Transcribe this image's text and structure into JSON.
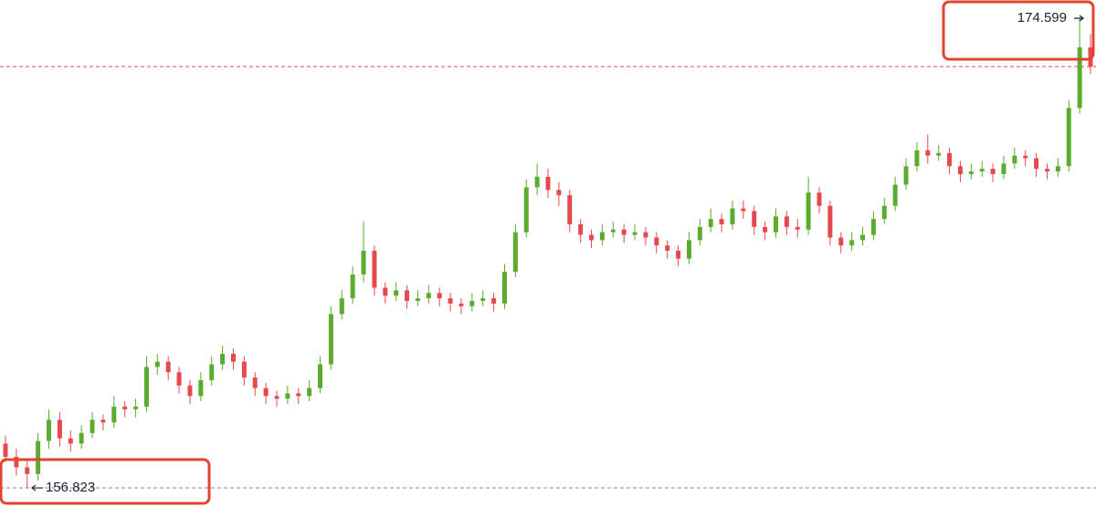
{
  "chart_data": {
    "type": "candlestick",
    "ylim": [
      156.1,
      175.29
    ],
    "up_color": "#5aab2e",
    "down_color": "#e5484d",
    "last_price": 172.77,
    "last_price_color": "#e5484d",
    "high_marker": 174.599,
    "low_marker": 156.823,
    "ohlc": [
      [
        158.5,
        158.8,
        157.8,
        158.0
      ],
      [
        158.0,
        158.3,
        157.3,
        157.6
      ],
      [
        157.6,
        157.9,
        156.823,
        157.35
      ],
      [
        157.35,
        158.9,
        157.1,
        158.6
      ],
      [
        158.6,
        159.8,
        158.3,
        159.4
      ],
      [
        159.4,
        159.7,
        158.4,
        158.7
      ],
      [
        158.7,
        159.0,
        158.2,
        158.5
      ],
      [
        158.5,
        159.2,
        158.3,
        158.9
      ],
      [
        158.9,
        159.7,
        158.7,
        159.4
      ],
      [
        159.4,
        159.6,
        159.0,
        159.3
      ],
      [
        159.3,
        160.3,
        159.1,
        159.9
      ],
      [
        159.9,
        160.1,
        159.5,
        159.8
      ],
      [
        159.8,
        160.2,
        159.5,
        159.9
      ],
      [
        159.9,
        161.8,
        159.7,
        161.4
      ],
      [
        161.4,
        161.9,
        161.1,
        161.6
      ],
      [
        161.6,
        161.8,
        160.9,
        161.2
      ],
      [
        161.2,
        161.4,
        160.4,
        160.7
      ],
      [
        160.7,
        160.9,
        160.0,
        160.3
      ],
      [
        160.3,
        161.2,
        160.1,
        160.9
      ],
      [
        160.9,
        161.8,
        160.7,
        161.5
      ],
      [
        161.5,
        162.2,
        161.3,
        161.9
      ],
      [
        161.9,
        162.1,
        161.3,
        161.6
      ],
      [
        161.6,
        161.8,
        160.7,
        161.0
      ],
      [
        161.0,
        161.2,
        160.3,
        160.6
      ],
      [
        160.6,
        160.8,
        160.0,
        160.3
      ],
      [
        160.3,
        160.5,
        159.9,
        160.2
      ],
      [
        160.2,
        160.7,
        160.0,
        160.4
      ],
      [
        160.4,
        160.6,
        160.0,
        160.3
      ],
      [
        160.3,
        160.9,
        160.1,
        160.6
      ],
      [
        160.6,
        161.8,
        160.4,
        161.5
      ],
      [
        161.5,
        163.7,
        161.3,
        163.4
      ],
      [
        163.4,
        164.3,
        163.2,
        164.0
      ],
      [
        164.0,
        165.2,
        163.8,
        164.9
      ],
      [
        164.9,
        166.9,
        164.6,
        165.8
      ],
      [
        165.8,
        166.0,
        164.1,
        164.4
      ],
      [
        164.4,
        164.6,
        163.8,
        164.1
      ],
      [
        164.1,
        164.6,
        163.9,
        164.3
      ],
      [
        164.3,
        164.5,
        163.6,
        163.9
      ],
      [
        163.9,
        164.3,
        163.7,
        164.0
      ],
      [
        164.0,
        164.5,
        163.8,
        164.2
      ],
      [
        164.2,
        164.4,
        163.7,
        164.0
      ],
      [
        164.0,
        164.2,
        163.5,
        163.8
      ],
      [
        163.8,
        164.0,
        163.4,
        163.7
      ],
      [
        163.7,
        164.2,
        163.5,
        163.9
      ],
      [
        163.9,
        164.3,
        163.7,
        164.0
      ],
      [
        164.0,
        164.2,
        163.5,
        163.8
      ],
      [
        163.8,
        165.3,
        163.6,
        165.0
      ],
      [
        165.0,
        166.8,
        164.8,
        166.5
      ],
      [
        166.5,
        168.5,
        166.3,
        168.2
      ],
      [
        168.2,
        169.1,
        167.9,
        168.6
      ],
      [
        168.6,
        168.9,
        167.8,
        168.1
      ],
      [
        168.1,
        168.4,
        167.5,
        167.9
      ],
      [
        167.9,
        168.1,
        166.5,
        166.8
      ],
      [
        166.8,
        167.0,
        166.1,
        166.4
      ],
      [
        166.4,
        166.6,
        165.9,
        166.2
      ],
      [
        166.2,
        166.8,
        166.0,
        166.5
      ],
      [
        166.5,
        166.9,
        166.3,
        166.6
      ],
      [
        166.6,
        166.8,
        166.1,
        166.4
      ],
      [
        166.4,
        166.8,
        166.2,
        166.5
      ],
      [
        166.5,
        166.7,
        166.0,
        166.3
      ],
      [
        166.3,
        166.5,
        165.7,
        166.0
      ],
      [
        166.0,
        166.2,
        165.5,
        165.8
      ],
      [
        165.8,
        166.0,
        165.2,
        165.5
      ],
      [
        165.5,
        166.5,
        165.3,
        166.2
      ],
      [
        166.2,
        167.0,
        166.0,
        166.7
      ],
      [
        166.7,
        167.4,
        166.5,
        167.0
      ],
      [
        167.0,
        167.2,
        166.5,
        166.8
      ],
      [
        166.8,
        167.7,
        166.6,
        167.4
      ],
      [
        167.4,
        167.7,
        167.0,
        167.3
      ],
      [
        167.3,
        167.5,
        166.4,
        166.7
      ],
      [
        166.7,
        166.9,
        166.2,
        166.5
      ],
      [
        166.5,
        167.4,
        166.3,
        167.1
      ],
      [
        167.1,
        167.3,
        166.4,
        166.7
      ],
      [
        166.7,
        167.0,
        166.3,
        166.6
      ],
      [
        166.6,
        168.6,
        166.4,
        168.0
      ],
      [
        168.0,
        168.2,
        167.2,
        167.5
      ],
      [
        167.5,
        167.7,
        166.0,
        166.3
      ],
      [
        166.3,
        166.5,
        165.7,
        166.0
      ],
      [
        166.0,
        166.5,
        165.8,
        166.2
      ],
      [
        166.2,
        166.7,
        166.0,
        166.4
      ],
      [
        166.4,
        167.3,
        166.2,
        167.0
      ],
      [
        167.0,
        167.8,
        166.8,
        167.5
      ],
      [
        167.5,
        168.6,
        167.3,
        168.3
      ],
      [
        168.3,
        169.3,
        168.1,
        169.0
      ],
      [
        169.0,
        169.9,
        168.8,
        169.6
      ],
      [
        169.6,
        170.2,
        169.1,
        169.4
      ],
      [
        169.4,
        169.8,
        169.2,
        169.5
      ],
      [
        169.5,
        169.7,
        168.7,
        169.0
      ],
      [
        169.0,
        169.2,
        168.4,
        168.7
      ],
      [
        168.7,
        169.1,
        168.5,
        168.8
      ],
      [
        168.8,
        169.2,
        168.6,
        168.9
      ],
      [
        168.9,
        169.1,
        168.4,
        168.7
      ],
      [
        168.7,
        169.4,
        168.5,
        169.1
      ],
      [
        169.1,
        169.7,
        168.9,
        169.4
      ],
      [
        169.4,
        169.6,
        169.0,
        169.3
      ],
      [
        169.3,
        169.5,
        168.6,
        168.9
      ],
      [
        168.9,
        169.1,
        168.5,
        168.8
      ],
      [
        168.8,
        169.3,
        168.6,
        169.0
      ],
      [
        169.0,
        171.5,
        168.8,
        171.2
      ],
      [
        171.2,
        174.599,
        171.0,
        173.5
      ],
      [
        173.5,
        174.0,
        172.5,
        172.77
      ]
    ]
  }
}
